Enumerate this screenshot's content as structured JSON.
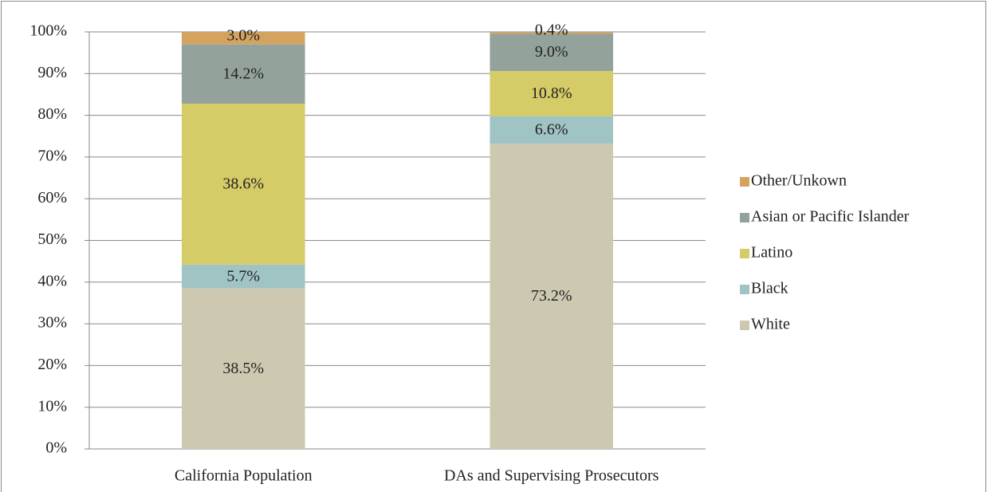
{
  "chart_data": {
    "type": "stacked_bar",
    "categories": [
      "California Population",
      "DAs and Supervising Prosecutors"
    ],
    "series": [
      {
        "name": "White",
        "color": "#cdc9b1",
        "values": [
          38.5,
          73.2
        ],
        "value_labels": [
          "38.5%",
          "73.2%"
        ]
      },
      {
        "name": "Black",
        "color": "#a0c3c3",
        "values": [
          5.7,
          6.6
        ],
        "value_labels": [
          "5.7%",
          "6.6%"
        ]
      },
      {
        "name": "Latino",
        "color": "#d5cb67",
        "values": [
          38.6,
          10.8
        ],
        "value_labels": [
          "38.6%",
          "10.8%"
        ]
      },
      {
        "name": "Asian or Pacific Islander",
        "color": "#93a39b",
        "values": [
          14.2,
          9.0
        ],
        "value_labels": [
          "14.2%",
          "9.0%"
        ]
      },
      {
        "name": "Other/Unkown",
        "color": "#d4a35f",
        "values": [
          3.0,
          0.4
        ],
        "value_labels": [
          "3.0%",
          "0.4%"
        ]
      }
    ],
    "ylim": [
      0,
      100
    ],
    "yticks": [
      {
        "value": 0,
        "label": "0%"
      },
      {
        "value": 10,
        "label": "10%"
      },
      {
        "value": 20,
        "label": "20%"
      },
      {
        "value": 30,
        "label": "30%"
      },
      {
        "value": 40,
        "label": "40%"
      },
      {
        "value": 50,
        "label": "50%"
      },
      {
        "value": 60,
        "label": "60%"
      },
      {
        "value": 70,
        "label": "70%"
      },
      {
        "value": 80,
        "label": "80%"
      },
      {
        "value": 90,
        "label": "90%"
      },
      {
        "value": 100,
        "label": "100%"
      }
    ],
    "grid": true,
    "legend": "right"
  }
}
